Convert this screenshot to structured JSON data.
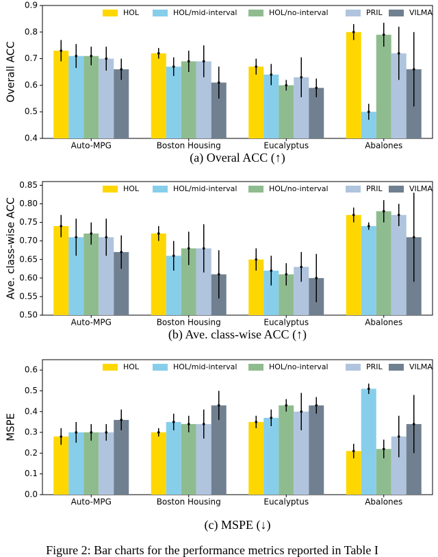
{
  "chart_data": [
    {
      "type": "bar",
      "xlabel": "(a) Overal ACC (↑)",
      "ylabel": "Overall ACC",
      "categories": [
        "Auto-MPG",
        "Boston Housing",
        "Eucalyptus",
        "Abalones"
      ],
      "ylim": [
        0.4,
        0.9
      ],
      "yticks": [
        0.4,
        0.5,
        0.6,
        0.7,
        0.8,
        0.9
      ],
      "series": [
        {
          "name": "HOL",
          "color": "#ffd700",
          "values": [
            0.73,
            0.72,
            0.67,
            0.8
          ],
          "errors": [
            0.04,
            0.02,
            0.03,
            0.03
          ]
        },
        {
          "name": "HOL/mid-interval",
          "color": "#87ceeb",
          "values": [
            0.71,
            0.67,
            0.64,
            0.5
          ],
          "errors": [
            0.045,
            0.035,
            0.04,
            0.03
          ]
        },
        {
          "name": "HOL/no-interval",
          "color": "#8fbc8f",
          "values": [
            0.71,
            0.69,
            0.6,
            0.79
          ],
          "errors": [
            0.035,
            0.04,
            0.02,
            0.045
          ]
        },
        {
          "name": "PRIL",
          "color": "#b0c4de",
          "values": [
            0.7,
            0.69,
            0.63,
            0.72
          ],
          "errors": [
            0.045,
            0.06,
            0.075,
            0.1
          ]
        },
        {
          "name": "VILMA",
          "color": "#708090",
          "values": [
            0.66,
            0.61,
            0.59,
            0.66
          ],
          "errors": [
            0.04,
            0.06,
            0.035,
            0.14
          ]
        }
      ]
    },
    {
      "type": "bar",
      "xlabel": "(b) Ave. class-wise ACC (↑)",
      "ylabel": "Ave. class-wise ACC",
      "categories": [
        "Auto-MPG",
        "Boston Housing",
        "Eucalyptus",
        "Abalones"
      ],
      "ylim": [
        0.5,
        0.86
      ],
      "yticks": [
        {
          "value": 0.5,
          "label": "0.50"
        },
        0.55,
        {
          "value": 0.6,
          "label": "0.60"
        },
        0.65,
        {
          "value": 0.7,
          "label": "0.70"
        },
        0.75,
        {
          "value": 0.8,
          "label": "0.80"
        },
        0.85
      ],
      "series": [
        {
          "name": "HOL",
          "color": "#ffd700",
          "values": [
            0.74,
            0.72,
            0.65,
            0.77
          ],
          "errors": [
            0.03,
            0.02,
            0.03,
            0.02
          ]
        },
        {
          "name": "HOL/mid-interval",
          "color": "#87ceeb",
          "values": [
            0.71,
            0.66,
            0.62,
            0.74
          ],
          "errors": [
            0.05,
            0.04,
            0.04,
            0.01
          ]
        },
        {
          "name": "HOL/no-interval",
          "color": "#8fbc8f",
          "values": [
            0.72,
            0.68,
            0.61,
            0.78
          ],
          "errors": [
            0.03,
            0.045,
            0.03,
            0.03
          ]
        },
        {
          "name": "PRIL",
          "color": "#b0c4de",
          "values": [
            0.71,
            0.68,
            0.63,
            0.77
          ],
          "errors": [
            0.05,
            0.065,
            0.04,
            0.03
          ]
        },
        {
          "name": "VILMA",
          "color": "#708090",
          "values": [
            0.67,
            0.61,
            0.6,
            0.71
          ],
          "errors": [
            0.045,
            0.065,
            0.065,
            0.12
          ]
        }
      ]
    },
    {
      "type": "bar",
      "xlabel": "(c) MSPE (↓)",
      "ylabel": "MSPE",
      "categories": [
        "Auto-MPG",
        "Boston Housing",
        "Eucalyptus",
        "Abalones"
      ],
      "ylim": [
        0,
        0.65
      ],
      "yticks": [
        {
          "value": 0,
          "label": "0.0"
        },
        0.1,
        0.2,
        0.3,
        0.4,
        0.5,
        0.6
      ],
      "series": [
        {
          "name": "HOL",
          "color": "#ffd700",
          "values": [
            0.28,
            0.3,
            0.35,
            0.21
          ],
          "errors": [
            0.04,
            0.02,
            0.03,
            0.035
          ]
        },
        {
          "name": "HOL/mid-interval",
          "color": "#87ceeb",
          "values": [
            0.3,
            0.35,
            0.37,
            0.51
          ],
          "errors": [
            0.05,
            0.04,
            0.04,
            0.025
          ]
        },
        {
          "name": "HOL/no-interval",
          "color": "#8fbc8f",
          "values": [
            0.3,
            0.34,
            0.43,
            0.22
          ],
          "errors": [
            0.04,
            0.04,
            0.03,
            0.045
          ]
        },
        {
          "name": "PRIL",
          "color": "#b0c4de",
          "values": [
            0.3,
            0.34,
            0.4,
            0.28
          ],
          "errors": [
            0.04,
            0.07,
            0.09,
            0.1
          ]
        },
        {
          "name": "VILMA",
          "color": "#708090",
          "values": [
            0.36,
            0.43,
            0.43,
            0.34
          ],
          "errors": [
            0.05,
            0.07,
            0.04,
            0.14
          ]
        }
      ]
    }
  ],
  "figure_caption": "Figure 2: Bar charts for the performance metrics reported in Table I"
}
